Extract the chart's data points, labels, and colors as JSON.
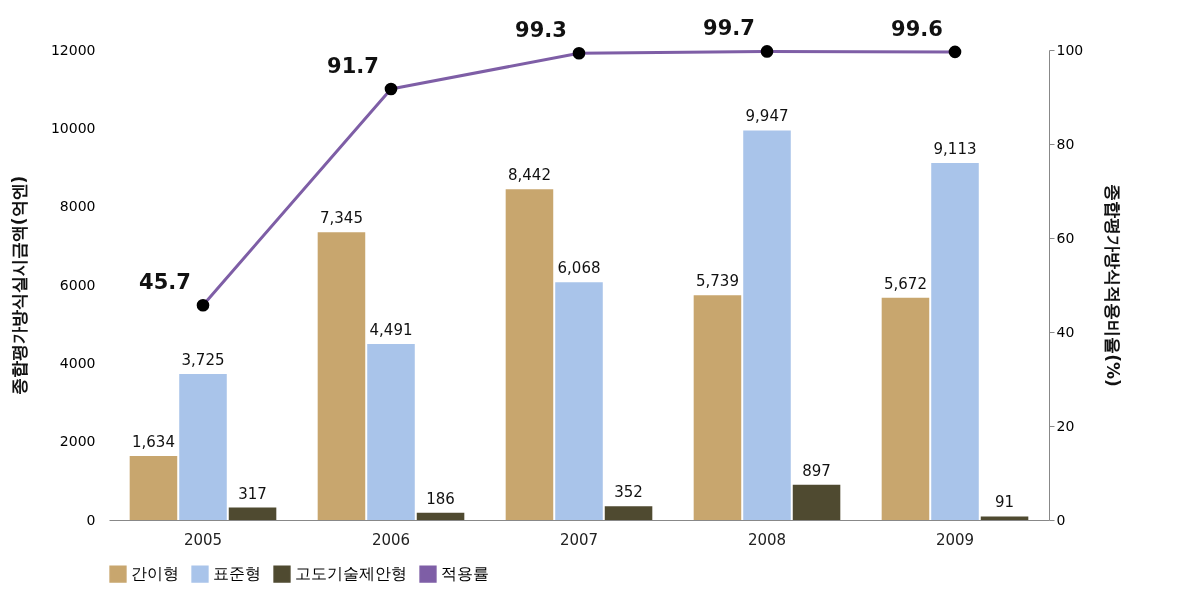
{
  "chart_data": {
    "type": "bar",
    "categories": [
      "2005",
      "2006",
      "2007",
      "2008",
      "2009"
    ],
    "ylabel": "종합평가방식실시금액(억엔)",
    "y2label": "종합평가방식적용비율(%)",
    "ylim": [
      0,
      12000
    ],
    "yticks": [
      0,
      2000,
      4000,
      6000,
      8000,
      10000,
      12000
    ],
    "y2lim": [
      0,
      100
    ],
    "y2ticks": [
      0,
      20,
      40,
      60,
      80,
      100
    ],
    "series": [
      {
        "name": "간이형",
        "color": "#c8a66e",
        "values": [
          1634,
          7345,
          8442,
          5739,
          5672
        ],
        "value_labels": [
          "1,634",
          "7,345",
          "8,442",
          "5,739",
          "5,672"
        ]
      },
      {
        "name": "표준형",
        "color": "#a9c4ea",
        "values": [
          3725,
          4491,
          6068,
          9947,
          9113
        ],
        "value_labels": [
          "3,725",
          "4,491",
          "6,068",
          "9,947",
          "9,113"
        ]
      },
      {
        "name": "고도기술제안형",
        "color": "#4f4a30",
        "values": [
          317,
          186,
          352,
          897,
          91
        ],
        "value_labels": [
          "317",
          "186",
          "352",
          "897",
          "91"
        ]
      },
      {
        "name": "적용률",
        "type": "line",
        "axis": "y2",
        "color": "#7e5ea6",
        "values": [
          45.7,
          91.7,
          99.3,
          99.7,
          99.6
        ]
      }
    ],
    "data_labels": true,
    "legend": "bottom",
    "grid": false,
    "marker": "circle"
  }
}
